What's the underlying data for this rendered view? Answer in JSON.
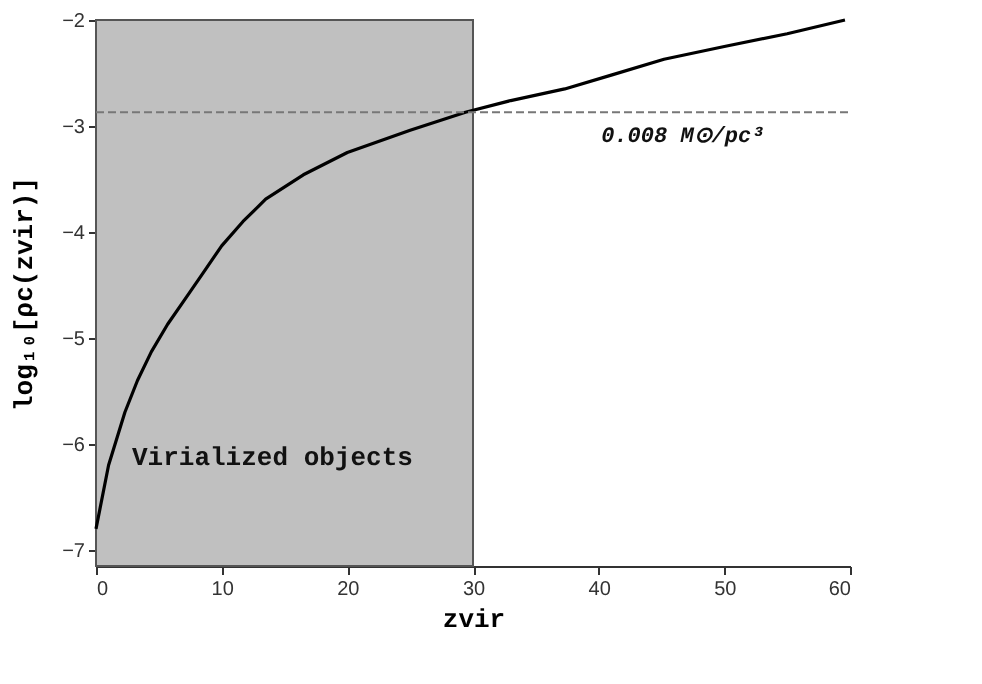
{
  "chart_data": {
    "type": "line",
    "xlabel": "zvir",
    "ylabel": "log₁₀[ρc(zvir)]",
    "x": [
      0,
      1,
      2.3,
      3.3,
      4.4,
      5.7,
      7.1,
      8.5,
      10,
      11.7,
      13.5,
      16.5,
      20,
      25,
      29.4,
      33,
      37.3,
      41,
      45.2,
      50,
      55,
      59.6
    ],
    "series": [
      {
        "color": "#000000",
        "values": [
          -6.8,
          -6.2,
          -5.7,
          -5.4,
          -5.13,
          -4.87,
          -4.63,
          -4.39,
          -4.13,
          -3.9,
          -3.69,
          -3.46,
          -3.25,
          -3.04,
          -2.87,
          -2.76,
          -2.65,
          -2.52,
          -2.37,
          -2.25,
          -2.13,
          -2.0
        ]
      }
    ],
    "xlim": [
      0,
      60
    ],
    "ylim": [
      -7.15,
      -2
    ],
    "xticks": [
      0,
      10,
      20,
      30,
      40,
      50,
      60
    ],
    "yticks": [
      -7,
      -6,
      -5,
      -4,
      -3,
      -2
    ],
    "grid": false,
    "marker": "none",
    "line_style": "solid",
    "ref_lines": [
      {
        "axis": "y",
        "value": -2.87,
        "label": "0.008 M⊙/pc³",
        "color": "#777777",
        "line_style": "dashed"
      }
    ],
    "bands": [
      {
        "axis": "x",
        "from": 0,
        "to": 30,
        "label": "Virialized objects",
        "color": "#c0c0c0"
      }
    ]
  }
}
